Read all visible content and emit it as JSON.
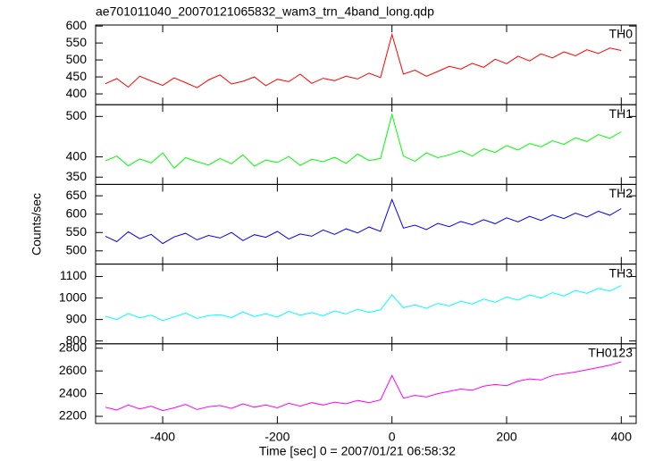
{
  "chart_data": {
    "type": "line",
    "title": "ae701011040_20070121065832_wam3_trn_4band_long.qdp",
    "xlabel": "Time [sec] 0 = 2007/01/21 06:58:32",
    "ylabel": "Counts/sec",
    "xlim": [
      -517,
      426
    ],
    "xticks": [
      -400,
      -200,
      0,
      200,
      400
    ],
    "x": [
      -500,
      -480,
      -460,
      -440,
      -420,
      -400,
      -380,
      -360,
      -340,
      -320,
      -300,
      -280,
      -260,
      -240,
      -220,
      -200,
      -180,
      -160,
      -140,
      -120,
      -100,
      -80,
      -60,
      -40,
      -20,
      0,
      20,
      40,
      60,
      80,
      100,
      120,
      140,
      160,
      180,
      200,
      220,
      240,
      260,
      280,
      300,
      320,
      340,
      360,
      380,
      400
    ],
    "series": [
      {
        "name": "TH0",
        "color": "#ff0000",
        "ylim": [
          368,
          603
        ],
        "yticks": [
          400,
          450,
          500,
          550,
          600
        ],
        "values": [
          430,
          445,
          420,
          452,
          438,
          425,
          447,
          433,
          418,
          441,
          456,
          429,
          437,
          450,
          424,
          443,
          436,
          458,
          431,
          446,
          439,
          452,
          444,
          461,
          448,
          575,
          458,
          470,
          452,
          466,
          481,
          473,
          490,
          478,
          502,
          489,
          511,
          497,
          518,
          506,
          524,
          512,
          530,
          519,
          535,
          528
        ]
      },
      {
        "name": "TH1",
        "color": "#00ff00",
        "ylim": [
          332,
          529
        ],
        "yticks": [
          350,
          400,
          500
        ],
        "values": [
          390,
          402,
          378,
          395,
          385,
          410,
          372,
          398,
          388,
          380,
          396,
          383,
          405,
          377,
          392,
          386,
          401,
          379,
          394,
          388,
          399,
          384,
          407,
          391,
          396,
          505,
          402,
          389,
          410,
          398,
          405,
          415,
          402,
          420,
          411,
          428,
          417,
          433,
          425,
          440,
          431,
          447,
          438,
          455,
          446,
          462
        ]
      },
      {
        "name": "TH2",
        "color": "#0000ff",
        "ylim": [
          464,
          681
        ],
        "yticks": [
          500,
          550,
          600,
          650
        ],
        "values": [
          540,
          525,
          552,
          533,
          545,
          520,
          538,
          548,
          530,
          542,
          535,
          550,
          528,
          544,
          537,
          553,
          532,
          546,
          540,
          557,
          545,
          560,
          549,
          565,
          553,
          640,
          562,
          570,
          558,
          575,
          566,
          580,
          571,
          585,
          574,
          590,
          579,
          594,
          583,
          598,
          588,
          603,
          592,
          608,
          597,
          615
        ]
      },
      {
        "name": "TH3",
        "color": "#00ffff",
        "ylim": [
          787,
          1158
        ],
        "yticks": [
          800,
          900,
          1000,
          1100
        ],
        "values": [
          915,
          900,
          928,
          908,
          920,
          895,
          912,
          930,
          905,
          918,
          922,
          909,
          935,
          914,
          927,
          911,
          938,
          920,
          932,
          917,
          940,
          926,
          948,
          933,
          945,
          1015,
          955,
          968,
          952,
          975,
          963,
          985,
          972,
          995,
          980,
          1005,
          990,
          1015,
          1000,
          1025,
          1010,
          1035,
          1022,
          1045,
          1032,
          1058
        ]
      },
      {
        "name": "TH0123",
        "color": "#ff00ff",
        "ylim": [
          2137,
          2839
        ],
        "yticks": [
          2200,
          2400,
          2600,
          2800
        ],
        "values": [
          2280,
          2255,
          2300,
          2265,
          2290,
          2250,
          2275,
          2305,
          2260,
          2285,
          2295,
          2270,
          2310,
          2280,
          2300,
          2275,
          2315,
          2290,
          2320,
          2300,
          2325,
          2310,
          2340,
          2320,
          2345,
          2560,
          2360,
          2385,
          2370,
          2400,
          2420,
          2440,
          2430,
          2465,
          2480,
          2470,
          2510,
          2530,
          2520,
          2560,
          2575,
          2590,
          2610,
          2630,
          2650,
          2680
        ]
      }
    ]
  }
}
